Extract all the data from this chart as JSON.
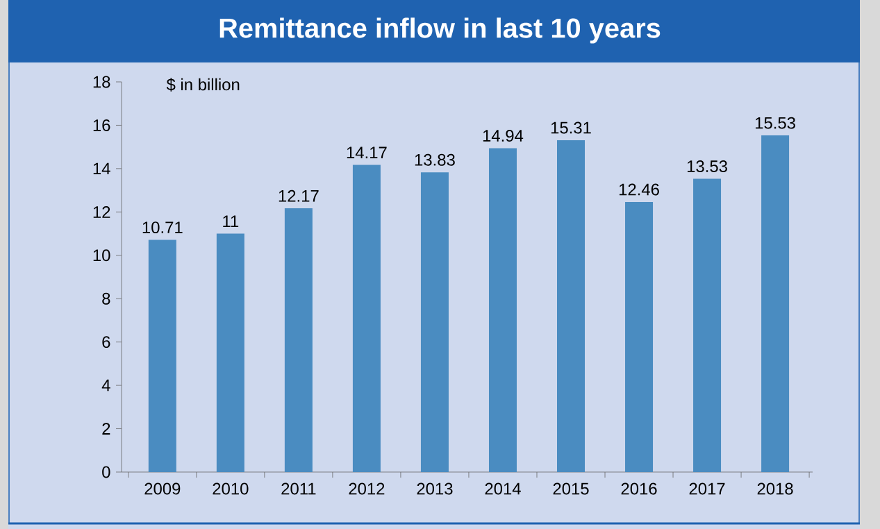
{
  "chart_data": {
    "type": "bar",
    "title": "Remittance inflow in last 10 years",
    "ylabel": "$ in billion",
    "categories": [
      "2009",
      "2010",
      "2011",
      "2012",
      "2013",
      "2014",
      "2015",
      "2016",
      "2017",
      "2018"
    ],
    "values": [
      10.71,
      11,
      12.17,
      14.17,
      13.83,
      14.94,
      15.31,
      12.46,
      13.53,
      15.53
    ],
    "color": "#4a8cc1",
    "ylim": [
      0,
      18
    ],
    "yticks": [
      0,
      2,
      4,
      6,
      8,
      10,
      12,
      14,
      16,
      18
    ],
    "data_labels": true
  }
}
